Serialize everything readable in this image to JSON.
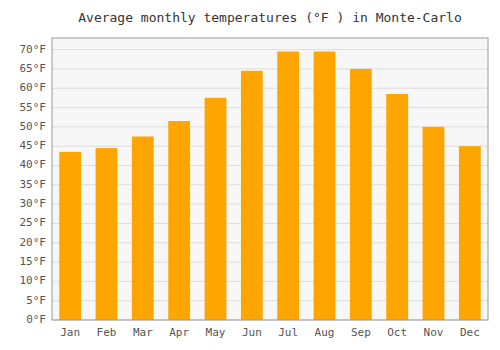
{
  "chart_data": {
    "type": "bar",
    "title": "Average monthly temperatures (°F ) in Monte-Carlo",
    "categories": [
      "Jan",
      "Feb",
      "Mar",
      "Apr",
      "May",
      "Jun",
      "Jul",
      "Aug",
      "Sep",
      "Oct",
      "Nov",
      "Dec"
    ],
    "values": [
      43.5,
      44.5,
      47.5,
      51.5,
      57.5,
      64.5,
      69.5,
      69.5,
      65.0,
      58.5,
      50.0,
      45.0
    ],
    "color": "#FFA500",
    "ylim": [
      0,
      73
    ],
    "yticks": [
      {
        "value": 0,
        "label": "0°F"
      },
      {
        "value": 5,
        "label": "5°F"
      },
      {
        "value": 10,
        "label": "10°F"
      },
      {
        "value": 15,
        "label": "15°F"
      },
      {
        "value": 20,
        "label": "20°F"
      },
      {
        "value": 25,
        "label": "25°F"
      },
      {
        "value": 30,
        "label": "30°F"
      },
      {
        "value": 35,
        "label": "35°F"
      },
      {
        "value": 40,
        "label": "40°F"
      },
      {
        "value": 45,
        "label": "45°F"
      },
      {
        "value": 50,
        "label": "50°F"
      },
      {
        "value": 55,
        "label": "55°F"
      },
      {
        "value": 60,
        "label": "60°F"
      },
      {
        "value": 65,
        "label": "65°F"
      },
      {
        "value": 70,
        "label": "70°F"
      }
    ],
    "grid": true
  }
}
